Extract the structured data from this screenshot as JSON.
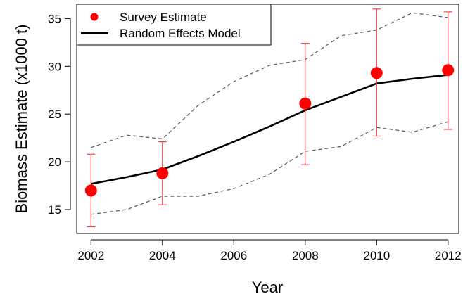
{
  "chart_data": {
    "type": "line",
    "xlabel": "Year",
    "ylabel": "Biomass Estimate (x1000 t)",
    "xlim": [
      2001.6,
      2012.3
    ],
    "ylim": [
      12.5,
      36.5
    ],
    "xticks": [
      2002,
      2004,
      2006,
      2008,
      2010,
      2012
    ],
    "yticks": [
      15,
      20,
      25,
      30,
      35
    ],
    "grid": false,
    "legend_position": "top-left",
    "colors": {
      "survey": "#ff0000",
      "model": "#000000",
      "ci": "#555555",
      "error_bar": "#ee3333"
    },
    "legend": [
      {
        "label": "Survey Estimate",
        "symbol": "point"
      },
      {
        "label": "Random Effects Model",
        "symbol": "line"
      }
    ],
    "survey_estimate": {
      "name": "Survey Estimate",
      "x": [
        2002,
        2004,
        2008,
        2010,
        2012
      ],
      "y": [
        17.0,
        18.8,
        26.1,
        29.3,
        29.6
      ],
      "lower": [
        13.2,
        15.5,
        19.7,
        22.7,
        23.4
      ],
      "upper": [
        20.8,
        22.1,
        32.4,
        36.0,
        35.7
      ]
    },
    "model": {
      "name": "Random Effects Model",
      "x": [
        2002,
        2003,
        2004,
        2005,
        2006,
        2007,
        2008,
        2009,
        2010,
        2011,
        2012
      ],
      "y": [
        17.7,
        18.4,
        19.2,
        20.6,
        22.1,
        23.7,
        25.4,
        26.8,
        28.2,
        28.7,
        29.1
      ],
      "lower": [
        14.5,
        15.0,
        16.4,
        16.4,
        17.2,
        18.7,
        21.1,
        21.6,
        23.6,
        23.1,
        24.2
      ],
      "upper": [
        21.5,
        22.8,
        22.4,
        25.9,
        28.4,
        30.1,
        30.7,
        33.2,
        33.8,
        35.6,
        35.1
      ]
    }
  }
}
